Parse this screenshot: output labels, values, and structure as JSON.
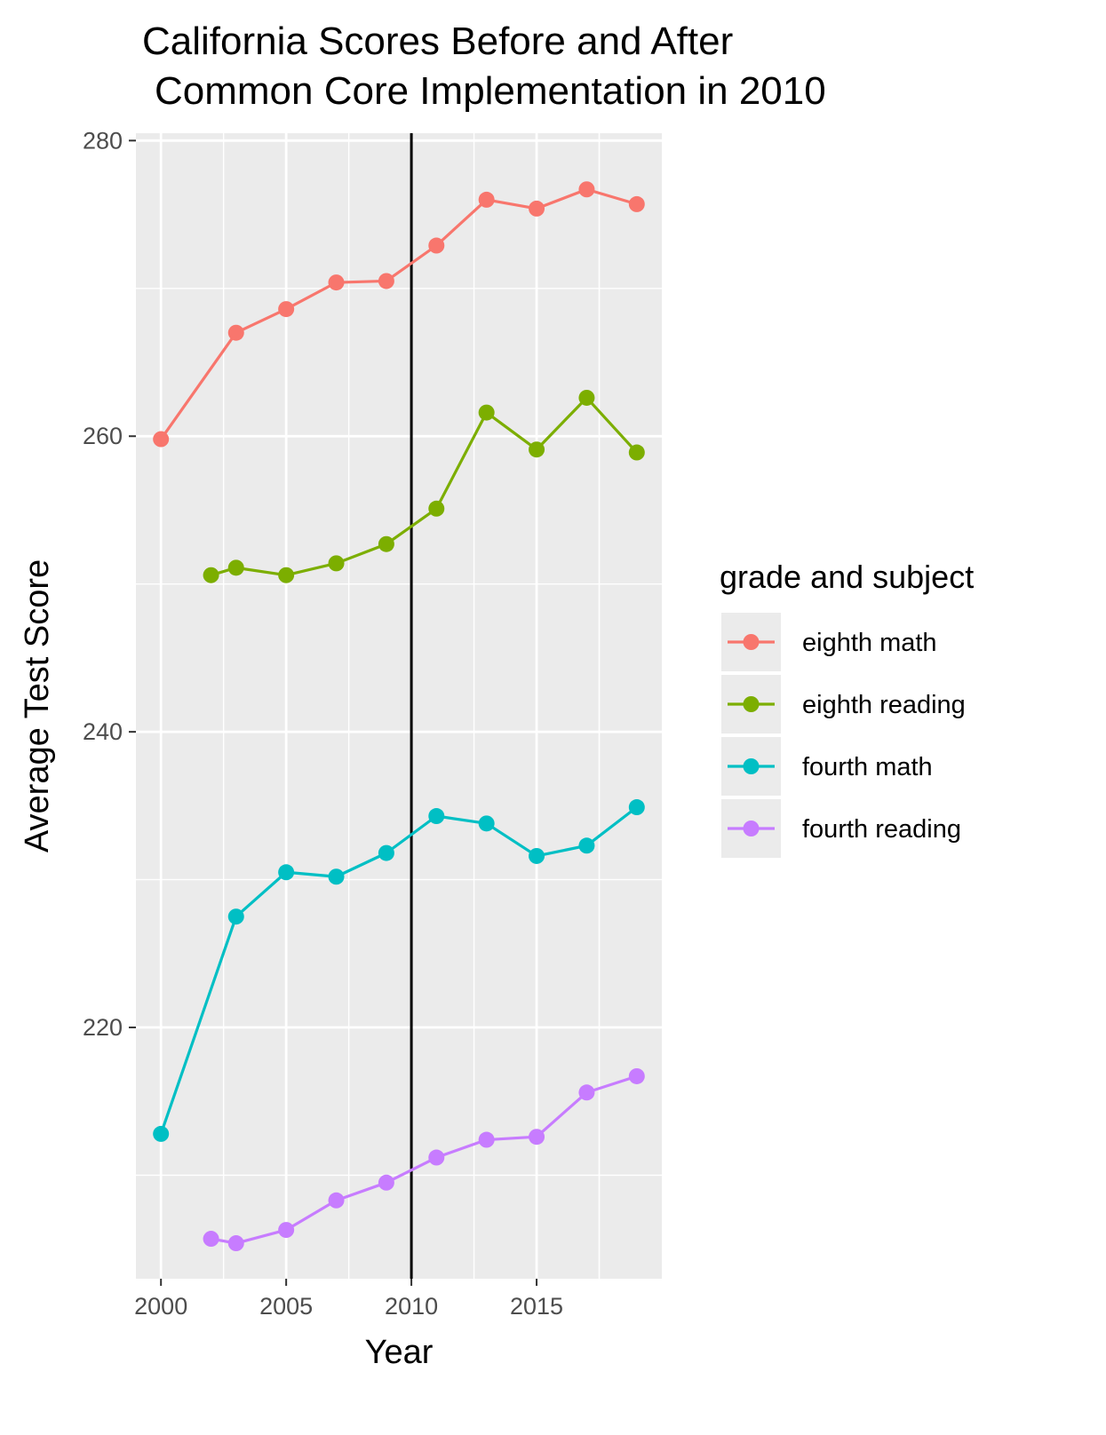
{
  "chart_data": {
    "type": "line",
    "title_lines": [
      "California Scores Before and After",
      "Common Core Implementation in 2010"
    ],
    "xlabel": "Year",
    "ylabel": "Average Test Score",
    "xlim": [
      1999.0,
      2020.0
    ],
    "ylim": [
      203.0,
      280.5
    ],
    "x_ticks": [
      2000,
      2005,
      2010,
      2015
    ],
    "y_ticks": [
      220,
      240,
      260,
      280
    ],
    "reference_line": {
      "x": 2010,
      "color": "#000000"
    },
    "grid": true,
    "legend": {
      "title": "grade and subject",
      "position": "right"
    },
    "series": [
      {
        "name": "eighth math",
        "color": "#F8766D",
        "x": [
          2000,
          2003,
          2005,
          2007,
          2009,
          2011,
          2013,
          2015,
          2017,
          2019
        ],
        "y": [
          259.8,
          267.0,
          268.6,
          270.4,
          270.5,
          272.9,
          276.0,
          275.4,
          276.7,
          275.7
        ]
      },
      {
        "name": "eighth reading",
        "color": "#7CAE00",
        "x": [
          2002,
          2003,
          2005,
          2007,
          2009,
          2011,
          2013,
          2015,
          2017,
          2019
        ],
        "y": [
          250.6,
          251.1,
          250.6,
          251.4,
          252.7,
          255.1,
          261.6,
          259.1,
          262.6,
          258.9
        ]
      },
      {
        "name": "fourth math",
        "color": "#00BFC4",
        "x": [
          2000,
          2003,
          2005,
          2007,
          2009,
          2011,
          2013,
          2015,
          2017,
          2019
        ],
        "y": [
          212.8,
          227.5,
          230.5,
          230.2,
          231.8,
          234.3,
          233.8,
          231.6,
          232.3,
          234.9
        ]
      },
      {
        "name": "fourth reading",
        "color": "#C77CFF",
        "x": [
          2002,
          2003,
          2005,
          2007,
          2009,
          2011,
          2013,
          2015,
          2017,
          2019
        ],
        "y": [
          205.7,
          205.4,
          206.3,
          208.3,
          209.5,
          211.2,
          212.4,
          212.6,
          215.6,
          216.7
        ]
      }
    ]
  }
}
